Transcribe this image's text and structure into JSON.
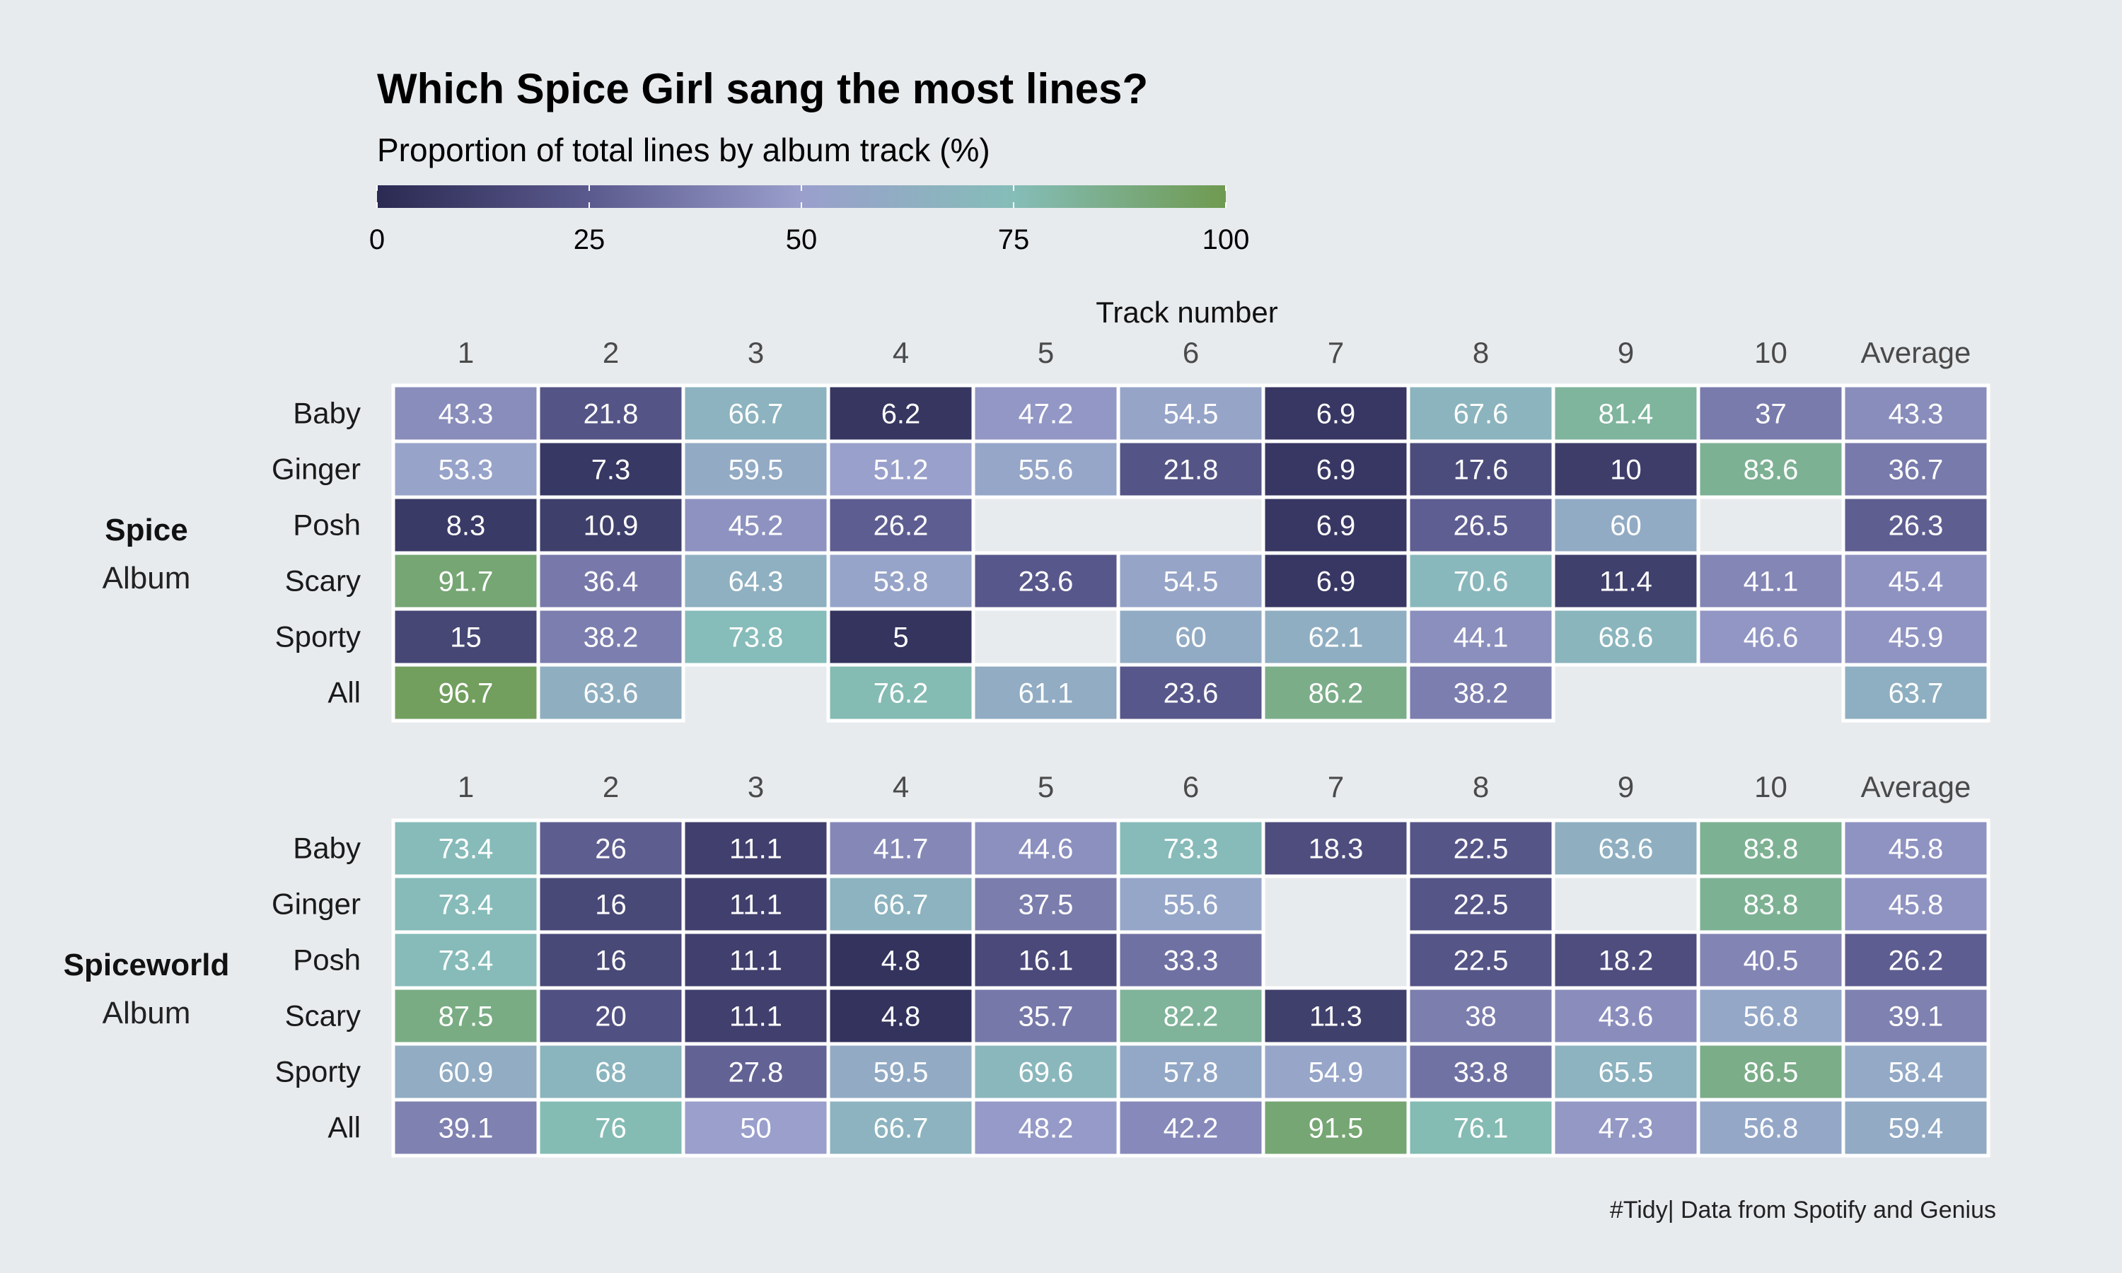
{
  "title": "Which Spice Girl sang the most lines?",
  "subtitle": "Proportion of total lines by album track (%)",
  "caption": "#Tidy| Data from Spotify and Genius",
  "chart_data": {
    "type": "heatmap",
    "xlabel": "Track number",
    "columns": [
      "1",
      "2",
      "3",
      "4",
      "5",
      "6",
      "7",
      "8",
      "9",
      "10",
      "Average"
    ],
    "rows": [
      "Baby",
      "Ginger",
      "Posh",
      "Scary",
      "Sporty",
      "All"
    ],
    "legend": {
      "ticks": [
        "0",
        "25",
        "50",
        "75",
        "100"
      ],
      "range": [
        0,
        100
      ],
      "position": "top",
      "colors": [
        "#2a2a52",
        "#5b5a8e",
        "#9a9fcc",
        "#85bdb8",
        "#6f9a50"
      ]
    },
    "panels": [
      {
        "album_name": "Spice",
        "album_sub": "Album",
        "values": [
          [
            "43.3",
            "21.8",
            "66.7",
            "6.2",
            "47.2",
            "54.5",
            "6.9",
            "67.6",
            "81.4",
            "37",
            "43.3"
          ],
          [
            "53.3",
            "7.3",
            "59.5",
            "51.2",
            "55.6",
            "21.8",
            "6.9",
            "17.6",
            "10",
            "83.6",
            "36.7"
          ],
          [
            "8.3",
            "10.9",
            "45.2",
            "26.2",
            null,
            null,
            "6.9",
            "26.5",
            "60",
            null,
            "26.3"
          ],
          [
            "91.7",
            "36.4",
            "64.3",
            "53.8",
            "23.6",
            "54.5",
            "6.9",
            "70.6",
            "11.4",
            "41.1",
            "45.4"
          ],
          [
            "15",
            "38.2",
            "73.8",
            "5",
            null,
            "60",
            "62.1",
            "44.1",
            "68.6",
            "46.6",
            "45.9"
          ],
          [
            "96.7",
            "63.6",
            null,
            "76.2",
            "61.1",
            "23.6",
            "86.2",
            "38.2",
            null,
            null,
            "63.7"
          ]
        ]
      },
      {
        "album_name": "Spiceworld",
        "album_sub": "Album",
        "values": [
          [
            "73.4",
            "26",
            "11.1",
            "41.7",
            "44.6",
            "73.3",
            "18.3",
            "22.5",
            "63.6",
            "83.8",
            "45.8"
          ],
          [
            "73.4",
            "16",
            "11.1",
            "66.7",
            "37.5",
            "55.6",
            null,
            "22.5",
            null,
            "83.8",
            "45.8"
          ],
          [
            "73.4",
            "16",
            "11.1",
            "4.8",
            "16.1",
            "33.3",
            null,
            "22.5",
            "18.2",
            "40.5",
            "26.2"
          ],
          [
            "87.5",
            "20",
            "11.1",
            "4.8",
            "35.7",
            "82.2",
            "11.3",
            "38",
            "43.6",
            "56.8",
            "39.1"
          ],
          [
            "60.9",
            "68",
            "27.8",
            "59.5",
            "69.6",
            "57.8",
            "54.9",
            "33.8",
            "65.5",
            "86.5",
            "58.4"
          ],
          [
            "39.1",
            "76",
            "50",
            "66.7",
            "48.2",
            "42.2",
            "91.5",
            "76.1",
            "47.3",
            "56.8",
            "59.4"
          ]
        ]
      }
    ]
  }
}
